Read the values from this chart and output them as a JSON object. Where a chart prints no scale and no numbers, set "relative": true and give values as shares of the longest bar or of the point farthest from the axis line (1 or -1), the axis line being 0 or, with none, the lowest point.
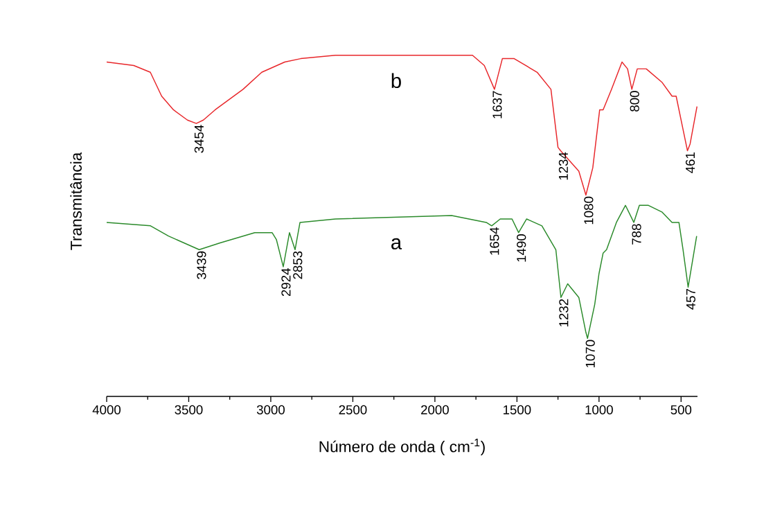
{
  "chart_data": {
    "type": "line",
    "relative": true,
    "xlabel": "Número de onda  ( cm$^{-1}$)",
    "ylabel": "Transmitância",
    "xlim": [
      4000,
      400
    ],
    "xticks": [
      4000,
      {
        "value": 3750,
        "label": null
      },
      3500,
      {
        "value": 3250,
        "label": null
      },
      3000,
      {
        "value": 2750,
        "label": null
      },
      2500,
      {
        "value": 2250,
        "label": null
      },
      2000,
      {
        "value": 1750,
        "label": null
      },
      1500,
      {
        "value": 1250,
        "label": null
      },
      1000,
      {
        "value": 750,
        "label": null
      },
      500
    ],
    "series": [
      {
        "name": "a",
        "color": "#2a8a2a",
        "x": [
          4000,
          3733,
          3623,
          3436,
          3309,
          3098,
          2992,
          2966,
          2924,
          2886,
          2852,
          2822,
          2606,
          1898,
          1687,
          1654,
          1602,
          1530,
          1490,
          1441,
          1348,
          1263,
          1232,
          1191,
          1123,
          1081,
          1070,
          1026,
          1000,
          975,
          954,
          894,
          839,
          788,
          754,
          699,
          615,
          555,
          513,
          488,
          457,
          405
        ],
        "values": [
          0.51,
          0.5,
          0.47,
          0.43,
          0.45,
          0.48,
          0.48,
          0.46,
          0.38,
          0.48,
          0.43,
          0.51,
          0.52,
          0.53,
          0.51,
          0.5,
          0.52,
          0.52,
          0.48,
          0.52,
          0.5,
          0.43,
          0.29,
          0.33,
          0.29,
          0.19,
          0.17,
          0.27,
          0.36,
          0.42,
          0.43,
          0.51,
          0.56,
          0.51,
          0.56,
          0.56,
          0.54,
          0.51,
          0.51,
          0.43,
          0.32,
          0.47
        ]
      },
      {
        "name": "b",
        "color": "#e8262a",
        "x": [
          4000,
          3835,
          3734,
          3665,
          3593,
          3508,
          3454,
          3411,
          3339,
          3254,
          3169,
          3055,
          2915,
          2818,
          2606,
          1898,
          1771,
          1699,
          1637,
          1589,
          1517,
          1377,
          1293,
          1250,
          1234,
          1123,
          1080,
          1038,
          996,
          975,
          924,
          860,
          826,
          800,
          767,
          712,
          615,
          555,
          530,
          500,
          461,
          445,
          403
        ],
        "values": [
          0.98,
          0.97,
          0.95,
          0.88,
          0.84,
          0.81,
          0.8,
          0.81,
          0.84,
          0.87,
          0.9,
          0.95,
          0.98,
          0.99,
          1.0,
          1.0,
          1.0,
          0.97,
          0.9,
          0.99,
          0.99,
          0.95,
          0.9,
          0.73,
          0.72,
          0.66,
          0.59,
          0.67,
          0.84,
          0.84,
          0.9,
          0.98,
          0.96,
          0.9,
          0.96,
          0.96,
          0.92,
          0.88,
          0.88,
          0.81,
          0.72,
          0.74,
          0.85
        ]
      }
    ],
    "annotations": [
      {
        "text": "3454",
        "x": 3454,
        "y": 0.8
      },
      {
        "text": "1637",
        "x": 1637,
        "y": 0.9
      },
      {
        "text": "1234",
        "x": 1234,
        "y": 0.72
      },
      {
        "text": "1080",
        "x": 1080,
        "y": 0.59
      },
      {
        "text": "800",
        "x": 800,
        "y": 0.9
      },
      {
        "text": "461",
        "x": 461,
        "y": 0.72
      },
      {
        "text": "3439",
        "x": 3439,
        "y": 0.43
      },
      {
        "text": "2924",
        "x": 2924,
        "y": 0.38
      },
      {
        "text": "2853",
        "x": 2853,
        "y": 0.43
      },
      {
        "text": "1654",
        "x": 1654,
        "y": 0.5
      },
      {
        "text": "1490",
        "x": 1490,
        "y": 0.48
      },
      {
        "text": "1232",
        "x": 1232,
        "y": 0.29
      },
      {
        "text": "1070",
        "x": 1070,
        "y": 0.17
      },
      {
        "text": "788",
        "x": 788,
        "y": 0.51
      },
      {
        "text": "457",
        "x": 457,
        "y": 0.32
      }
    ]
  }
}
